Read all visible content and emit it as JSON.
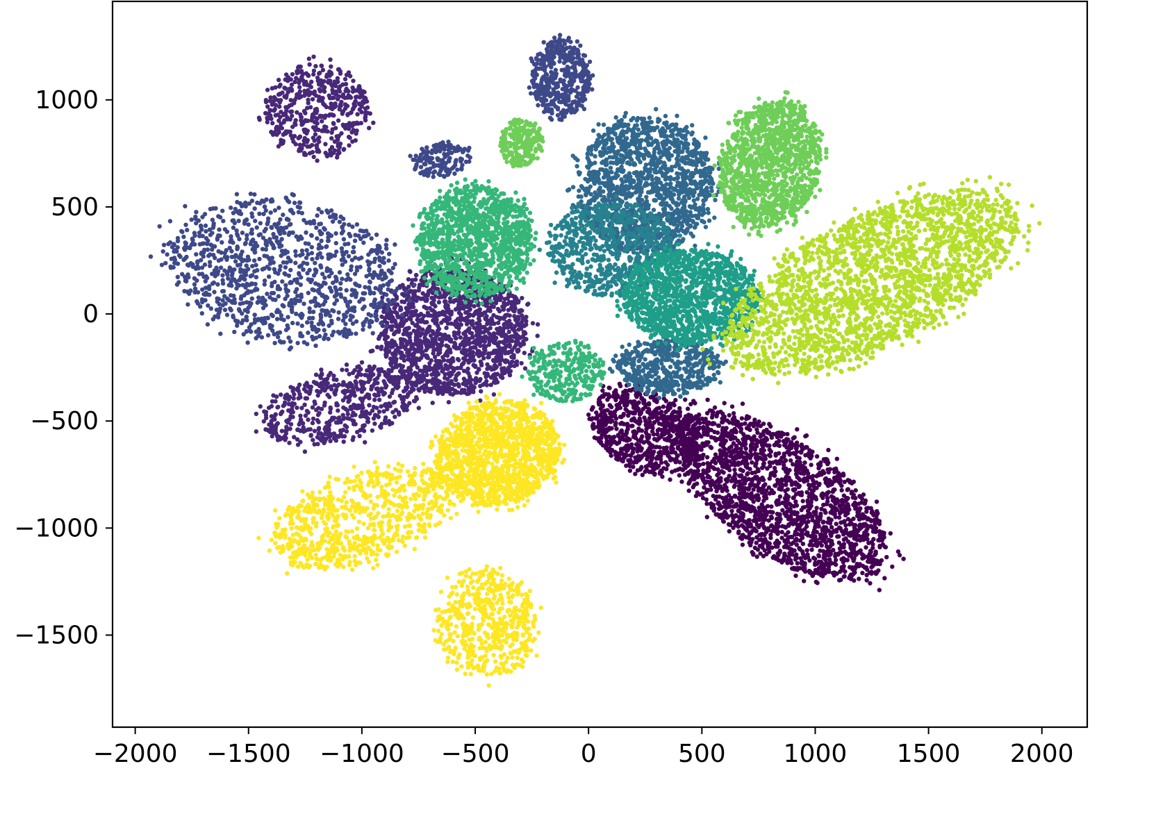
{
  "chart_data": {
    "type": "scatter",
    "title": "",
    "xlabel": "",
    "ylabel": "",
    "xlim": [
      -2100,
      2200
    ],
    "ylim": [
      -1930,
      1460
    ],
    "x_ticks": [
      -2000,
      -1500,
      -1000,
      -500,
      0,
      500,
      1000,
      1500,
      2000
    ],
    "y_ticks": [
      -1500,
      -1000,
      -500,
      0,
      500,
      1000
    ],
    "x_tick_labels": [
      "−2000",
      "−1500",
      "−1000",
      "−500",
      "0",
      "500",
      "1000",
      "1500",
      "2000"
    ],
    "y_tick_labels": [
      "−1500",
      "−1000",
      "−500",
      "0",
      "500",
      "1000"
    ],
    "grid": false,
    "legend": "none",
    "colormap": "viridis",
    "clusters": [
      {
        "color": "#440154",
        "blobs": [
          {
            "cx": 850,
            "cy": -850,
            "rx": 560,
            "ry": 260,
            "angle": -38,
            "n": 1900
          },
          {
            "cx": 250,
            "cy": -550,
            "rx": 260,
            "ry": 180,
            "angle": -30,
            "n": 700
          }
        ]
      },
      {
        "color": "#482878",
        "blobs": [
          {
            "cx": -600,
            "cy": -80,
            "rx": 330,
            "ry": 300,
            "angle": 0,
            "n": 1500
          },
          {
            "cx": -1200,
            "cy": 950,
            "rx": 230,
            "ry": 220,
            "angle": 0,
            "n": 500
          },
          {
            "cx": -1100,
            "cy": -430,
            "rx": 350,
            "ry": 170,
            "angle": 15,
            "n": 550
          }
        ]
      },
      {
        "color": "#3e4989",
        "blobs": [
          {
            "cx": -1350,
            "cy": 200,
            "rx": 520,
            "ry": 330,
            "angle": -10,
            "n": 1100
          },
          {
            "cx": -120,
            "cy": 1100,
            "rx": 130,
            "ry": 180,
            "angle": 0,
            "n": 450
          },
          {
            "cx": -650,
            "cy": 720,
            "rx": 130,
            "ry": 80,
            "angle": 10,
            "n": 150
          }
        ]
      },
      {
        "color": "#31688e",
        "blobs": [
          {
            "cx": 250,
            "cy": 600,
            "rx": 300,
            "ry": 320,
            "angle": 0,
            "n": 1500
          },
          {
            "cx": 350,
            "cy": -250,
            "rx": 230,
            "ry": 130,
            "angle": 0,
            "n": 500
          }
        ]
      },
      {
        "color": "#26828e",
        "blobs": [
          {
            "cx": 100,
            "cy": 300,
            "rx": 280,
            "ry": 220,
            "angle": 0,
            "n": 700
          }
        ]
      },
      {
        "color": "#1f9e89",
        "blobs": [
          {
            "cx": 450,
            "cy": 80,
            "rx": 300,
            "ry": 220,
            "angle": 0,
            "n": 1300
          }
        ]
      },
      {
        "color": "#35b779",
        "blobs": [
          {
            "cx": -500,
            "cy": 340,
            "rx": 250,
            "ry": 260,
            "angle": 0,
            "n": 1300
          },
          {
            "cx": -100,
            "cy": -270,
            "rx": 170,
            "ry": 140,
            "angle": 0,
            "n": 300
          }
        ]
      },
      {
        "color": "#6ece58",
        "blobs": [
          {
            "cx": 800,
            "cy": 700,
            "rx": 220,
            "ry": 300,
            "angle": -15,
            "n": 1300
          },
          {
            "cx": -300,
            "cy": 800,
            "rx": 90,
            "ry": 110,
            "angle": 0,
            "n": 250
          }
        ]
      },
      {
        "color": "#b5de2b",
        "blobs": [
          {
            "cx": 1250,
            "cy": 150,
            "rx": 720,
            "ry": 300,
            "angle": 28,
            "n": 2400
          }
        ]
      },
      {
        "color": "#fde725",
        "blobs": [
          {
            "cx": -400,
            "cy": -650,
            "rx": 280,
            "ry": 240,
            "angle": 20,
            "n": 1400
          },
          {
            "cx": -1000,
            "cy": -950,
            "rx": 420,
            "ry": 210,
            "angle": 20,
            "n": 800
          },
          {
            "cx": -450,
            "cy": -1450,
            "rx": 220,
            "ry": 250,
            "angle": 10,
            "n": 550
          }
        ]
      }
    ]
  }
}
